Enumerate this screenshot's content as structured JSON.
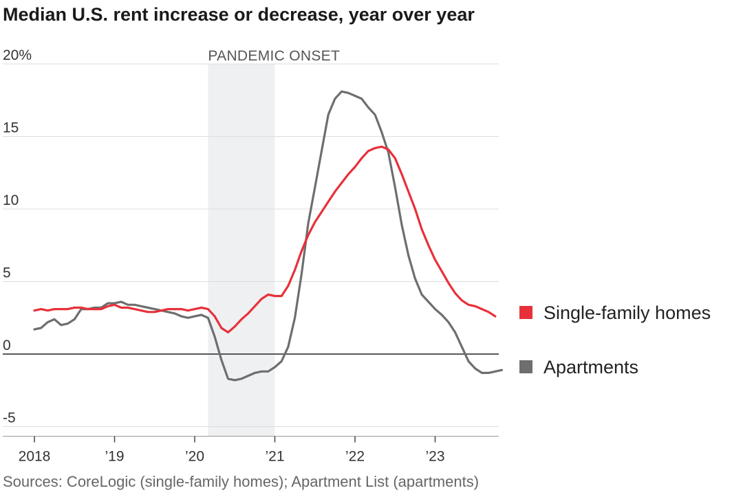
{
  "title": "Median U.S. rent increase or decrease, year over year",
  "source": "Sources: CoreLogic (single-family homes); Apartment List (apartments)",
  "colors": {
    "single_family": "#e8303a",
    "apartments": "#6e6e6e",
    "shade": "#eff0f2",
    "grid": "#dddddd",
    "zero": "#222222"
  },
  "chart_data": {
    "type": "line",
    "title": "Median U.S. rent increase or decrease, year over year",
    "xlabel": "",
    "ylabel": "",
    "ylim": [
      -5,
      20
    ],
    "xlim": [
      "2018-01",
      "2023-11"
    ],
    "grid": true,
    "y_ticks": [
      {
        "value": 20,
        "label": "20%"
      },
      {
        "value": 15,
        "label": "15"
      },
      {
        "value": 10,
        "label": "10"
      },
      {
        "value": 5,
        "label": "5"
      },
      {
        "value": 0,
        "label": "0"
      },
      {
        "value": -5,
        "label": "-5"
      }
    ],
    "x_ticks": [
      {
        "value": "2018-01",
        "label": "2018"
      },
      {
        "value": "2019-01",
        "label": "’19"
      },
      {
        "value": "2020-01",
        "label": "’20"
      },
      {
        "value": "2021-01",
        "label": "’21"
      },
      {
        "value": "2022-01",
        "label": "’22"
      },
      {
        "value": "2023-01",
        "label": "’23"
      }
    ],
    "shaded_region": {
      "start": "2020-03",
      "end": "2021-01",
      "label": "PANDEMIC ONSET"
    },
    "legend_placement": "right",
    "series": [
      {
        "name": "Single-family homes",
        "color": "#e8303a",
        "x": [
          "2018-01",
          "2018-02",
          "2018-03",
          "2018-04",
          "2018-05",
          "2018-06",
          "2018-07",
          "2018-08",
          "2018-09",
          "2018-10",
          "2018-11",
          "2018-12",
          "2019-01",
          "2019-02",
          "2019-03",
          "2019-04",
          "2019-05",
          "2019-06",
          "2019-07",
          "2019-08",
          "2019-09",
          "2019-10",
          "2019-11",
          "2019-12",
          "2020-01",
          "2020-02",
          "2020-03",
          "2020-04",
          "2020-05",
          "2020-06",
          "2020-07",
          "2020-08",
          "2020-09",
          "2020-10",
          "2020-11",
          "2020-12",
          "2021-01",
          "2021-02",
          "2021-03",
          "2021-04",
          "2021-05",
          "2021-06",
          "2021-07",
          "2021-08",
          "2021-09",
          "2021-10",
          "2021-11",
          "2021-12",
          "2022-01",
          "2022-02",
          "2022-03",
          "2022-04",
          "2022-05",
          "2022-06",
          "2022-07",
          "2022-08",
          "2022-09",
          "2022-10",
          "2022-11",
          "2022-12",
          "2023-01",
          "2023-02",
          "2023-03",
          "2023-04",
          "2023-05",
          "2023-06",
          "2023-07",
          "2023-08",
          "2023-09",
          "2023-10"
        ],
        "values": [
          3.0,
          3.1,
          3.0,
          3.1,
          3.1,
          3.1,
          3.2,
          3.2,
          3.1,
          3.1,
          3.1,
          3.3,
          3.4,
          3.2,
          3.2,
          3.1,
          3.0,
          2.9,
          2.9,
          3.0,
          3.1,
          3.1,
          3.1,
          3.0,
          3.1,
          3.2,
          3.1,
          2.6,
          1.8,
          1.5,
          1.9,
          2.4,
          2.8,
          3.3,
          3.8,
          4.1,
          4.0,
          4.0,
          4.7,
          5.8,
          7.1,
          8.2,
          9.1,
          9.8,
          10.5,
          11.2,
          11.8,
          12.4,
          12.9,
          13.5,
          14.0,
          14.2,
          14.3,
          14.1,
          13.5,
          12.4,
          11.2,
          10.0,
          8.6,
          7.5,
          6.5,
          5.7,
          4.9,
          4.2,
          3.7,
          3.4,
          3.3,
          3.1,
          2.9,
          2.6
        ]
      },
      {
        "name": "Apartments",
        "color": "#6e6e6e",
        "x": [
          "2018-01",
          "2018-02",
          "2018-03",
          "2018-04",
          "2018-05",
          "2018-06",
          "2018-07",
          "2018-08",
          "2018-09",
          "2018-10",
          "2018-11",
          "2018-12",
          "2019-01",
          "2019-02",
          "2019-03",
          "2019-04",
          "2019-05",
          "2019-06",
          "2019-07",
          "2019-08",
          "2019-09",
          "2019-10",
          "2019-11",
          "2019-12",
          "2020-01",
          "2020-02",
          "2020-03",
          "2020-04",
          "2020-05",
          "2020-06",
          "2020-07",
          "2020-08",
          "2020-09",
          "2020-10",
          "2020-11",
          "2020-12",
          "2021-01",
          "2021-02",
          "2021-03",
          "2021-04",
          "2021-05",
          "2021-06",
          "2021-07",
          "2021-08",
          "2021-09",
          "2021-10",
          "2021-11",
          "2021-12",
          "2022-01",
          "2022-02",
          "2022-03",
          "2022-04",
          "2022-05",
          "2022-06",
          "2022-07",
          "2022-08",
          "2022-09",
          "2022-10",
          "2022-11",
          "2022-12",
          "2023-01",
          "2023-02",
          "2023-03",
          "2023-04",
          "2023-05",
          "2023-06",
          "2023-07",
          "2023-08",
          "2023-09",
          "2023-10",
          "2023-11"
        ],
        "values": [
          1.7,
          1.8,
          2.2,
          2.4,
          2.0,
          2.1,
          2.4,
          3.1,
          3.1,
          3.2,
          3.2,
          3.5,
          3.5,
          3.6,
          3.4,
          3.4,
          3.3,
          3.2,
          3.1,
          3.0,
          2.9,
          2.8,
          2.6,
          2.5,
          2.6,
          2.7,
          2.5,
          1.2,
          -0.4,
          -1.7,
          -1.8,
          -1.7,
          -1.5,
          -1.3,
          -1.2,
          -1.2,
          -0.9,
          -0.5,
          0.5,
          2.5,
          5.5,
          9.0,
          11.5,
          14.0,
          16.5,
          17.6,
          18.1,
          18.0,
          17.8,
          17.6,
          17.0,
          16.5,
          15.3,
          13.9,
          11.5,
          8.9,
          6.8,
          5.2,
          4.1,
          3.6,
          3.1,
          2.7,
          2.2,
          1.5,
          0.5,
          -0.5,
          -1.0,
          -1.3,
          -1.3,
          -1.2,
          -1.1
        ]
      }
    ]
  }
}
